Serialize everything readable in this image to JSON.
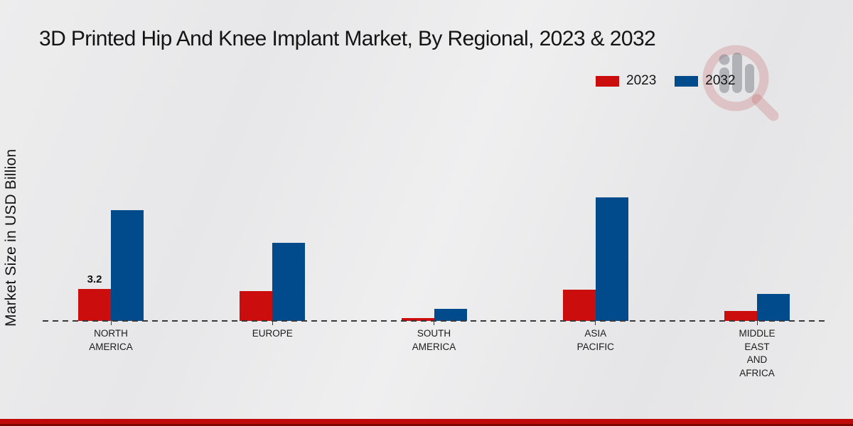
{
  "header": {
    "title": "3D Printed Hip And Knee Implant Market, By Regional, 2023 & 2032"
  },
  "legend": {
    "items": [
      {
        "label": "2023",
        "color": "#cc0d0d"
      },
      {
        "label": "2032",
        "color": "#014a8c"
      }
    ]
  },
  "colors": {
    "series_2023": "#cc0d0d",
    "series_2032": "#014a8c",
    "footer_red": "#c20909",
    "footer_dark_red": "#7d0502",
    "baseline": "#3a3a3a",
    "background": "#e9e9ea"
  },
  "chart_data": {
    "type": "bar",
    "title": "3D Printed Hip And Knee Implant Market, By Regional, 2023 & 2032",
    "xlabel": "",
    "ylabel": "Market Size in USD Billion",
    "ylim": [
      0,
      13
    ],
    "grid": false,
    "legend_position": "top-right",
    "baseline_style": "dashed",
    "categories": [
      "NORTH AMERICA",
      "EUROPE",
      "SOUTH AMERICA",
      "ASIA PACIFIC",
      "MIDDLE EAST AND AFRICA"
    ],
    "category_lines": [
      [
        "NORTH",
        "AMERICA"
      ],
      [
        "EUROPE"
      ],
      [
        "SOUTH",
        "AMERICA"
      ],
      [
        "ASIA",
        "PACIFIC"
      ],
      [
        "MIDDLE",
        "EAST",
        "AND",
        "AFRICA"
      ]
    ],
    "series": [
      {
        "name": "2023",
        "color": "#cc0d0d",
        "values": [
          3.2,
          3.0,
          0.3,
          3.1,
          1.0
        ]
      },
      {
        "name": "2032",
        "color": "#014a8c",
        "values": [
          11.1,
          7.8,
          1.2,
          12.4,
          2.7
        ]
      }
    ],
    "bar_labels": [
      {
        "cat": 0,
        "series": 0,
        "text": "3.2"
      }
    ]
  }
}
